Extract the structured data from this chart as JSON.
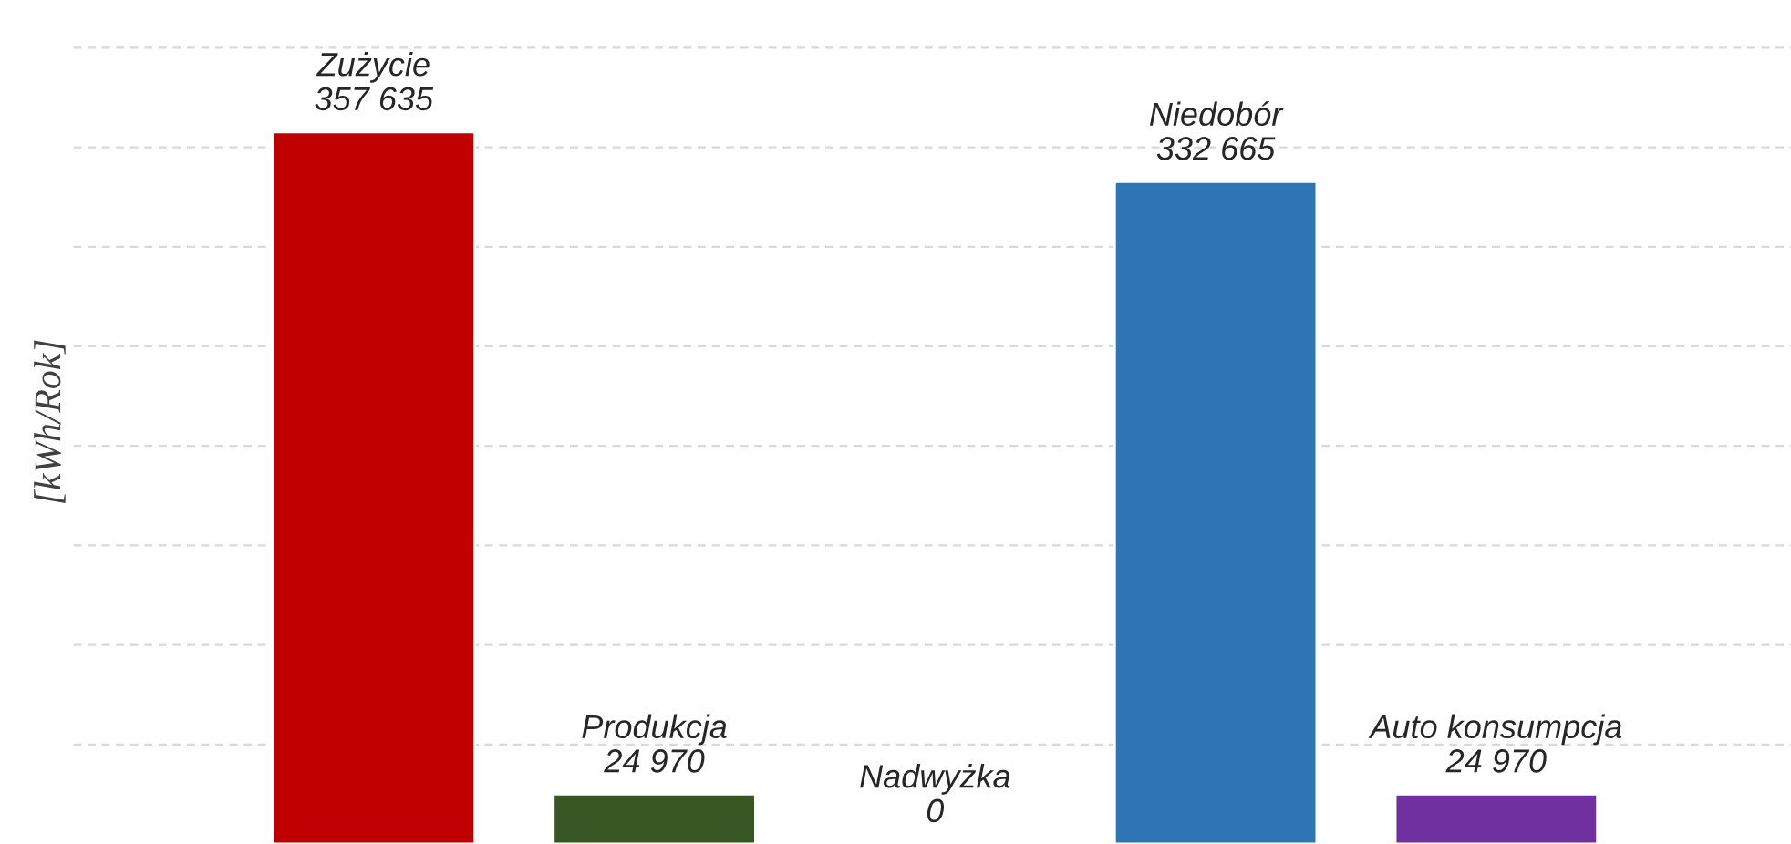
{
  "chart_data": {
    "type": "bar",
    "ylabel": "[kWh/Rok]",
    "categories": [
      "Zużycie",
      "Produkcja",
      "Nadwyżka",
      "Niedobór",
      "Auto konsumpcja"
    ],
    "values": [
      357635,
      24970,
      0,
      332665,
      24970
    ],
    "colors": [
      "#c00000",
      "#375623",
      null,
      "#2e75b6",
      "#7030a0"
    ],
    "value_labels": [
      "357 635",
      "24 970",
      "0",
      "332 665",
      "24 970"
    ],
    "yticks": [
      {
        "value": 50000,
        "label": null
      },
      {
        "value": 100000,
        "label": null
      },
      {
        "value": 150000,
        "label": null
      },
      {
        "value": 200000,
        "label": null
      },
      {
        "value": 250000,
        "label": null
      },
      {
        "value": 300000,
        "label": null
      },
      {
        "value": 350000,
        "label": null
      },
      {
        "value": 400000,
        "label": null
      }
    ],
    "grid": "y",
    "tick_labels": false
  }
}
